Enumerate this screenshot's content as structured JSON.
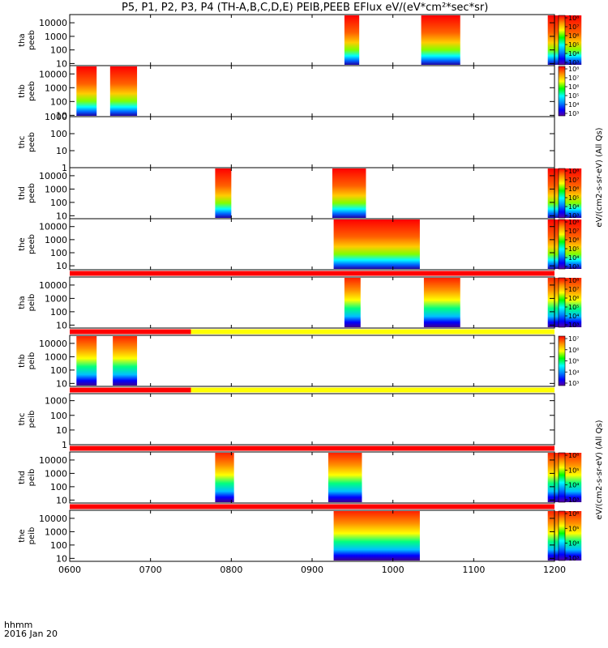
{
  "title": "P5, P1, P2, P3, P4 (TH-A,B,C,D,E) PEIB,PEEB EFlux eV/(eV*cm²*sec*sr)",
  "footer": {
    "line1": "hhmm",
    "line2": "2016 Jan 20"
  },
  "colorbar_label_eeb": "eV/(cm2-s-sr-eV) (All Qs)",
  "colorbar_label_ieb": "eV/(cm2-s-sr-eV) (All Qs)",
  "colors": {
    "red": "#ff0000",
    "yellow": "#ffff00",
    "orange": "#ff8c00",
    "blue": "#0000ff",
    "violet": "#4b0082",
    "black": "#000000"
  },
  "chart_data": {
    "type": "heatmap",
    "x_axis": {
      "label": "hhmm",
      "ticks": [
        "0600",
        "0700",
        "0800",
        "0900",
        "1000",
        "1100",
        "1200"
      ],
      "range": [
        "0600",
        "1200"
      ]
    },
    "y_scale": "log",
    "panels": [
      {
        "id": "tha_peeb",
        "ylabel": [
          "tha",
          "peeb"
        ],
        "yticks": [
          "10",
          "100",
          "1000",
          "10000"
        ],
        "ylim": [
          7,
          40000
        ],
        "cbar_ticks": [
          "10⁸",
          "10⁷",
          "10⁶",
          "10⁵",
          "10⁴",
          "10³"
        ],
        "data_intervals": [
          [
            "0924",
            "0935"
          ],
          [
            "1021",
            "1050"
          ],
          [
            "1155",
            "1180"
          ]
        ]
      },
      {
        "id": "thb_peeb",
        "ylabel": [
          "thb",
          "peeb"
        ],
        "yticks": [
          "10",
          "100",
          "1000",
          "10000"
        ],
        "ylim": [
          8,
          40000
        ],
        "cbar_ticks": [
          "10⁸",
          "10⁷",
          "10⁶",
          "10⁵",
          "10⁴",
          "10³"
        ],
        "data_intervals": [
          [
            "0605",
            "0620"
          ],
          [
            "0630",
            "0650"
          ]
        ]
      },
      {
        "id": "thc_peeb",
        "ylabel": [
          "thc",
          "peeb"
        ],
        "yticks": [
          "1",
          "10",
          "100",
          "1000"
        ],
        "ylim": [
          1,
          1000
        ],
        "cbar_ticks": [],
        "data_intervals": []
      },
      {
        "id": "thd_peeb",
        "ylabel": [
          "thd",
          "peeb"
        ],
        "yticks": [
          "10",
          "100",
          "1000",
          "10000"
        ],
        "ylim": [
          6,
          40000
        ],
        "cbar_ticks": [
          "10⁸",
          "10⁷",
          "10⁶",
          "10⁵",
          "10⁴",
          "10³"
        ],
        "data_intervals": [
          [
            "0748",
            "0800"
          ],
          [
            "0915",
            "0940"
          ],
          [
            "1155",
            "1180"
          ]
        ]
      },
      {
        "id": "the_peeb",
        "ylabel": [
          "the",
          "peeb"
        ],
        "yticks": [
          "10",
          "100",
          "1000",
          "10000"
        ],
        "ylim": [
          5,
          40000
        ],
        "cbar_ticks": [
          "10⁸",
          "10⁷",
          "10⁶",
          "10⁵",
          "10⁴",
          "10³"
        ],
        "data_intervals": [
          [
            "0916",
            "0980"
          ],
          [
            "1155",
            "1180"
          ]
        ]
      },
      {
        "id": "tha_peib",
        "ylabel": [
          "tha",
          "peib"
        ],
        "yticks": [
          "10",
          "100",
          "1000",
          "10000"
        ],
        "ylim": [
          6,
          40000
        ],
        "cbar_ticks": [
          "10⁸",
          "10⁷",
          "10⁶",
          "10⁵",
          "10⁴",
          "10³"
        ],
        "data_intervals": [
          [
            "0924",
            "0936"
          ],
          [
            "1023",
            "1050"
          ],
          [
            "1155",
            "1180"
          ]
        ]
      },
      {
        "id": "thb_peib",
        "ylabel": [
          "thb",
          "peib"
        ],
        "yticks": [
          "10",
          "100",
          "1000",
          "10000"
        ],
        "ylim": [
          6,
          40000
        ],
        "cbar_ticks": [
          "10⁷",
          "10⁶",
          "10⁵",
          "10⁴",
          "10³"
        ],
        "data_intervals": [
          [
            "0605",
            "0620"
          ],
          [
            "0632",
            "0650"
          ]
        ]
      },
      {
        "id": "thc_peib",
        "ylabel": [
          "thc",
          "peib"
        ],
        "yticks": [
          "1",
          "10",
          "100",
          "1000"
        ],
        "ylim": [
          1,
          3000
        ],
        "cbar_ticks": [],
        "data_intervals": []
      },
      {
        "id": "thd_peib",
        "ylabel": [
          "thd",
          "peib"
        ],
        "yticks": [
          "10",
          "100",
          "1000",
          "10000"
        ],
        "ylim": [
          6,
          40000
        ],
        "cbar_ticks": [
          "10⁶",
          "10⁵",
          "10⁴",
          "10³"
        ],
        "data_intervals": [
          [
            "0748",
            "0762"
          ],
          [
            "0912",
            "0937"
          ],
          [
            "1155",
            "1180"
          ]
        ]
      },
      {
        "id": "the_peib",
        "ylabel": [
          "the",
          "peib"
        ],
        "yticks": [
          "10",
          "100",
          "1000",
          "10000"
        ],
        "ylim": [
          6,
          40000
        ],
        "cbar_ticks": [
          "10⁶",
          "10⁵",
          "10⁴",
          "10³"
        ],
        "data_intervals": [
          [
            "0916",
            "0980"
          ],
          [
            "1155",
            "1180"
          ]
        ]
      }
    ],
    "status_bars": [
      {
        "after_panel": "the_peeb",
        "segments": [
          [
            "0600",
            "1200",
            "red"
          ]
        ]
      },
      {
        "after_panel": "tha_peib",
        "segments": [
          [
            "0600",
            "0690",
            "red"
          ],
          [
            "0690",
            "1200",
            "yellow"
          ]
        ]
      },
      {
        "after_panel": "thb_peib",
        "segments": [
          [
            "0600",
            "0690",
            "red"
          ],
          [
            "0690",
            "1200",
            "yellow"
          ]
        ]
      },
      {
        "after_panel": "thc_peib",
        "segments": [
          [
            "0600",
            "1200",
            "red"
          ]
        ]
      },
      {
        "after_panel": "thd_peib",
        "segments": [
          [
            "0600",
            "1200",
            "red"
          ]
        ]
      }
    ]
  }
}
